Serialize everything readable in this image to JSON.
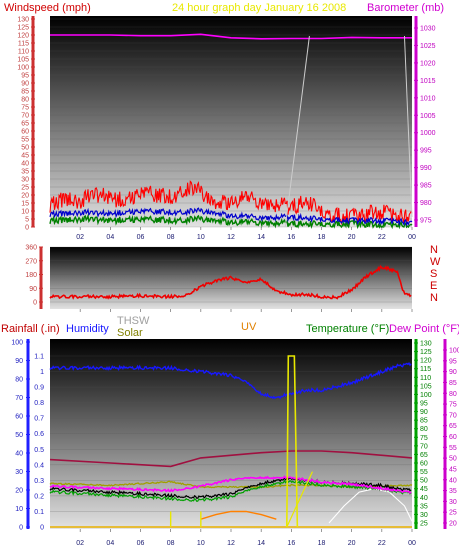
{
  "header": {
    "windspeed_label": "Windspeed (mph)",
    "title": "24 hour graph day   January 16 2008",
    "barometer_label": "Barometer (mb)"
  },
  "colors": {
    "gust": "#ff0000",
    "avg_wind": "#0000cc",
    "low_wind": "#008000",
    "barometer": "#ff00ff",
    "direction": "#ee0000",
    "thsw": "#ffffff",
    "solar": "#e8e800",
    "uv": "#ff8000",
    "temperature": "#00a000",
    "dewpoint": "#ff00ff",
    "humidity": "#1818ff",
    "rain_axis": "#2020ff",
    "rain_outline": "#e8b000",
    "inside_temp": "#a01040"
  },
  "chart_data": [
    {
      "type": "line",
      "x_tick_labels": [
        "02",
        "04",
        "06",
        "08",
        "10",
        "12",
        "14",
        "16",
        "18",
        "20",
        "22",
        "00"
      ],
      "left_axis": {
        "label": "Windspeed (mph)",
        "ylim": [
          0,
          60
        ],
        "ticks": [
          "0",
          "5",
          "10",
          "15",
          "20",
          "25",
          "30",
          "35",
          "40",
          "45",
          "50",
          "55",
          "60",
          "65",
          "70",
          "75",
          "80",
          "85",
          "90",
          "95",
          "100",
          "105",
          "110",
          "115",
          "120",
          "125",
          "130"
        ]
      },
      "right_axis": {
        "label": "Barometer (mb)",
        "ylim": [
          975,
          1030
        ],
        "ticks": [
          "975",
          "980",
          "985",
          "990",
          "995",
          "1000",
          "1005",
          "1010",
          "1015",
          "1020",
          "1025",
          "1030"
        ]
      },
      "series": [
        {
          "name": "Gust",
          "x": [
            0,
            1,
            2,
            3,
            4,
            5,
            6,
            7,
            8,
            9,
            10,
            11,
            12,
            13,
            14,
            15,
            16,
            17,
            18,
            19,
            20,
            21,
            22,
            23,
            24
          ],
          "values": [
            7,
            9,
            8,
            10,
            9,
            8,
            11,
            10,
            9,
            12,
            11,
            7,
            8,
            9,
            8,
            7,
            6,
            8,
            5,
            4,
            3,
            4,
            5,
            3,
            4
          ]
        },
        {
          "name": "Average",
          "x": [
            0,
            2,
            4,
            6,
            8,
            10,
            12,
            14,
            16,
            18,
            20,
            22,
            24
          ],
          "values": [
            4,
            4.5,
            4,
            5,
            4.5,
            5,
            3.5,
            3,
            3,
            2.5,
            2,
            2,
            1.5
          ]
        },
        {
          "name": "Low",
          "x": [
            0,
            2,
            4,
            6,
            8,
            10,
            12,
            14,
            16,
            18,
            20,
            22,
            24
          ],
          "values": [
            2,
            2.5,
            2,
            2.5,
            2,
            2.5,
            1.5,
            1.5,
            1,
            1,
            1,
            0.5,
            0.5
          ]
        },
        {
          "name": "Barometer",
          "x": [
            0,
            2,
            4,
            6,
            8,
            10,
            12,
            14,
            16,
            18,
            20,
            22,
            24
          ],
          "values": [
            1028,
            1028,
            1028,
            1027.8,
            1027.8,
            1028.2,
            1027.2,
            1026.9,
            1027,
            1027,
            1027.3,
            1027.2,
            1027.2
          ]
        }
      ]
    },
    {
      "type": "line",
      "x_tick_labels": [
        "02",
        "04",
        "06",
        "08",
        "10",
        "12",
        "14",
        "16",
        "18",
        "20",
        "22",
        "00"
      ],
      "left_axis": {
        "ylim": [
          0,
          360
        ],
        "ticks": [
          "0",
          "90",
          "180",
          "270",
          "360"
        ]
      },
      "right_axis": {
        "ticks": [
          "N",
          "W",
          "S",
          "E",
          "N"
        ]
      },
      "series": [
        {
          "name": "Wind Direction",
          "x": [
            0,
            2,
            4,
            6,
            8,
            9,
            10,
            11,
            12,
            13,
            14,
            15,
            16,
            17,
            18,
            19,
            20,
            21,
            22,
            23,
            23.5,
            24
          ],
          "values": [
            35,
            35,
            35,
            40,
            35,
            45,
            100,
            140,
            160,
            120,
            150,
            75,
            45,
            50,
            35,
            30,
            80,
            170,
            230,
            200,
            50,
            40
          ]
        }
      ]
    },
    {
      "type": "line",
      "legend": [
        "Rainfall (.in)",
        "Humidity",
        "THSW",
        "Solar",
        "UV",
        "Temperature (°F)",
        "Dew Point (°F)"
      ],
      "x_tick_labels": [
        "02",
        "04",
        "06",
        "08",
        "10",
        "12",
        "14",
        "16",
        "18",
        "20",
        "22",
        "00"
      ],
      "rain_axis": {
        "label": "Rainfall (.in)",
        "ylim": [
          0,
          1.1
        ],
        "ticks": [
          "0",
          "0.1",
          "0.2",
          "0.3",
          "0.4",
          "0.5",
          "0.6",
          "0.7",
          "0.8",
          "0.9",
          "1",
          "1.1"
        ]
      },
      "humidity_axis": {
        "label": "Humidity",
        "ylim": [
          0,
          100
        ],
        "ticks": [
          "0",
          "10",
          "20",
          "30",
          "40",
          "50",
          "60",
          "70",
          "80",
          "90",
          "100"
        ]
      },
      "temp_axis": {
        "label": "Temperature (°F)",
        "ylim": [
          25,
          130
        ],
        "ticks": [
          "25",
          "30",
          "35",
          "40",
          "45",
          "50",
          "55",
          "60",
          "65",
          "70",
          "75",
          "80",
          "85",
          "90",
          "95",
          "100",
          "105",
          "110",
          "115",
          "120",
          "125",
          "130"
        ]
      },
      "dew_axis": {
        "label": "Dew Point (°F)",
        "ylim": [
          20,
          100
        ],
        "ticks": [
          "20",
          "25",
          "30",
          "35",
          "40",
          "45",
          "50",
          "55",
          "60",
          "65",
          "70",
          "75",
          "80",
          "85",
          "90",
          "95",
          "100"
        ]
      },
      "series": [
        {
          "name": "Humidity",
          "x": [
            0,
            2,
            4,
            6,
            8,
            10,
            12,
            13,
            14,
            15,
            16,
            17,
            18,
            20,
            22,
            23,
            24
          ],
          "values": [
            86,
            86,
            86,
            86,
            86,
            84,
            82,
            78,
            72,
            70,
            72,
            74,
            74,
            78,
            84,
            87,
            88
          ]
        },
        {
          "name": "Inside Temperature",
          "x": [
            0,
            4,
            8,
            10,
            14,
            16,
            18,
            20,
            24
          ],
          "values": [
            62,
            60,
            58,
            63,
            66,
            67,
            67,
            66,
            63
          ]
        },
        {
          "name": "Solar",
          "x": [
            0,
            4,
            8,
            10,
            12,
            14,
            16,
            18,
            20,
            24
          ],
          "values": [
            48,
            47,
            49,
            46,
            46,
            46,
            47,
            47,
            46,
            47
          ]
        },
        {
          "name": "Temperature",
          "x": [
            0,
            2,
            4,
            6,
            8,
            10,
            12,
            14,
            15,
            16,
            17,
            18,
            20,
            22,
            23,
            24
          ],
          "values": [
            45,
            44,
            43,
            42,
            41,
            40,
            42,
            48,
            50,
            51,
            50,
            49,
            48,
            47,
            45,
            44
          ]
        },
        {
          "name": "THSW",
          "x": [
            18.5,
            19.5,
            20.5,
            21.5,
            22.5,
            23.5,
            24
          ],
          "values": [
            25,
            35,
            43,
            45,
            43,
            35,
            26
          ]
        },
        {
          "name": "Dew Point",
          "x": [
            0,
            4,
            8,
            10,
            12,
            14,
            16,
            18,
            20,
            22,
            24
          ],
          "values": [
            37,
            36,
            35,
            37,
            40,
            41,
            41,
            39,
            38,
            36,
            34
          ]
        },
        {
          "name": "UV",
          "x": [
            10,
            11,
            12,
            13,
            14,
            15
          ],
          "values": [
            0.05,
            0.08,
            0.1,
            0.1,
            0.08,
            0.05
          ]
        },
        {
          "name": "Rainfall",
          "x": [
            0,
            24
          ],
          "values": [
            0,
            0
          ]
        }
      ]
    }
  ]
}
